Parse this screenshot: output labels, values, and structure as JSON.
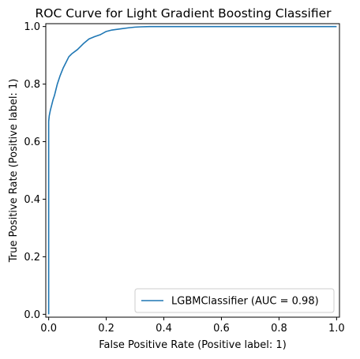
{
  "chart_data": {
    "type": "line",
    "title": "ROC Curve for Light Gradient Boosting Classifier",
    "xlabel": "False Positive Rate (Positive label: 1)",
    "ylabel": "True Positive Rate (Positive label: 1)",
    "xlim": [
      -0.01,
      1.01
    ],
    "ylim": [
      -0.01,
      1.01
    ],
    "xticks": [
      0.0,
      0.2,
      0.4,
      0.6,
      0.8,
      1.0
    ],
    "yticks": [
      0.0,
      0.2,
      0.4,
      0.6,
      0.8,
      1.0
    ],
    "xtick_labels": [
      "0.0",
      "0.2",
      "0.4",
      "0.6",
      "0.8",
      "1.0"
    ],
    "ytick_labels": [
      "0.0",
      "0.2",
      "0.4",
      "0.6",
      "0.8",
      "1.0"
    ],
    "grid": false,
    "legend_position": "lower-right",
    "series": [
      {
        "name": "LGBMClassifier (AUC = 0.98)",
        "color": "#1f77b4",
        "x": [
          0.0,
          0.0,
          0.002,
          0.004,
          0.006,
          0.01,
          0.015,
          0.02,
          0.025,
          0.03,
          0.04,
          0.05,
          0.06,
          0.07,
          0.08,
          0.1,
          0.12,
          0.14,
          0.16,
          0.18,
          0.2,
          0.22,
          0.25,
          0.28,
          0.3,
          0.32,
          0.35,
          0.4,
          0.5,
          0.6,
          0.7,
          0.8,
          0.9,
          1.0
        ],
        "y": [
          0.0,
          0.67,
          0.69,
          0.7,
          0.71,
          0.725,
          0.745,
          0.76,
          0.78,
          0.8,
          0.83,
          0.855,
          0.875,
          0.895,
          0.905,
          0.92,
          0.94,
          0.957,
          0.965,
          0.972,
          0.983,
          0.988,
          0.992,
          0.996,
          0.998,
          0.999,
          1.0,
          1.0,
          1.0,
          1.0,
          1.0,
          1.0,
          1.0,
          1.0
        ]
      }
    ]
  }
}
